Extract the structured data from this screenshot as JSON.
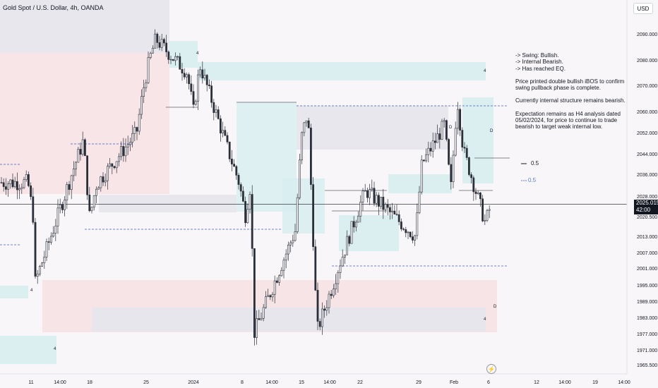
{
  "header": {
    "title": "Gold Spot / U.S. Dollar, 4h, OANDA",
    "currency": "USD"
  },
  "notes": [
    "-> Swing: Bullish.",
    "-> Internal Bearish.",
    "-> Has reached EQ.",
    "",
    "Price printed double bullish iBOS to confirm",
    "swing pullback phase is complete.",
    "",
    "Currently internal structure remains bearish.",
    "",
    "Expectation remains as H4 analysis dated",
    "05/02/2024, for price to continue to trade",
    "bearish to target weak internal low."
  ],
  "price_tag": {
    "price": "2025.015",
    "countdown": "42:00"
  },
  "fib_labels": {
    "upper": "0.5",
    "lower": "0.5"
  },
  "colors": {
    "up": "#2a2e39",
    "down": "#2a2e39",
    "demand_zone": "#d7eef0",
    "supply_zone": "#f6e1e3",
    "neutral_zone": "#e6e6ec",
    "dashed": "#3b5bb5"
  },
  "chart_data": {
    "type": "candlestick",
    "title": "Gold Spot / U.S. Dollar, 4h, OANDA",
    "y_axis": {
      "ticks": [
        2090.0,
        2080.0,
        2070.0,
        2060.0,
        2052.0,
        2044.0,
        2036.0,
        2028.0,
        2020.5,
        2013.0,
        2007.0,
        2001.0,
        1995.0,
        1989.0,
        1983.0,
        1977.0,
        1971.0,
        1965.5
      ],
      "unit": "USD",
      "range": [
        1962,
        2100
      ]
    },
    "x_axis": {
      "ticks": [
        "11",
        "14:00",
        "18",
        "25",
        "2024",
        "8",
        "14:00",
        "15",
        "14:00",
        "22",
        "29",
        "Feb",
        "6",
        "12",
        "14:00",
        "19",
        "14:00"
      ]
    },
    "last_price": 2025.015,
    "price_path": [
      [
        "11",
        2033
      ],
      [
        "11",
        2018
      ],
      [
        "14:00",
        1995
      ],
      [
        "14:00",
        1976
      ],
      [
        "14:00",
        1978
      ],
      [
        "14:00",
        1990
      ],
      [
        "14:00",
        2040
      ],
      [
        "18",
        2049
      ],
      [
        "18",
        2020
      ],
      [
        "18",
        2032
      ],
      [
        "25",
        2052
      ],
      [
        "25",
        2068
      ],
      [
        "25",
        2080
      ],
      [
        "25",
        2088
      ],
      [
        "2024",
        2075
      ],
      [
        "2024",
        2060
      ],
      [
        "2024",
        2078
      ],
      [
        "8",
        2040
      ],
      [
        "8",
        2033
      ],
      [
        "8",
        2021
      ],
      [
        "8",
        2035
      ],
      [
        "14:00",
        2030
      ],
      [
        "14:00",
        2026
      ],
      [
        "15",
        2015
      ],
      [
        "15",
        2050
      ],
      [
        "15",
        2060
      ],
      [
        "14:00",
        2030
      ],
      [
        "14:00",
        2004
      ],
      [
        "22",
        2018
      ],
      [
        "22",
        2025
      ],
      [
        "22",
        2030
      ],
      [
        "29",
        2013
      ],
      [
        "29",
        2040
      ],
      [
        "Feb",
        2055
      ],
      [
        "Feb",
        2030
      ],
      [
        "Feb",
        2065
      ],
      [
        "Feb",
        2045
      ],
      [
        "6",
        2018
      ],
      [
        "6",
        2026
      ]
    ],
    "annotations": [
      "0.5",
      "0.5",
      "4",
      "4",
      "4",
      "4",
      "4",
      "D",
      "D"
    ]
  }
}
